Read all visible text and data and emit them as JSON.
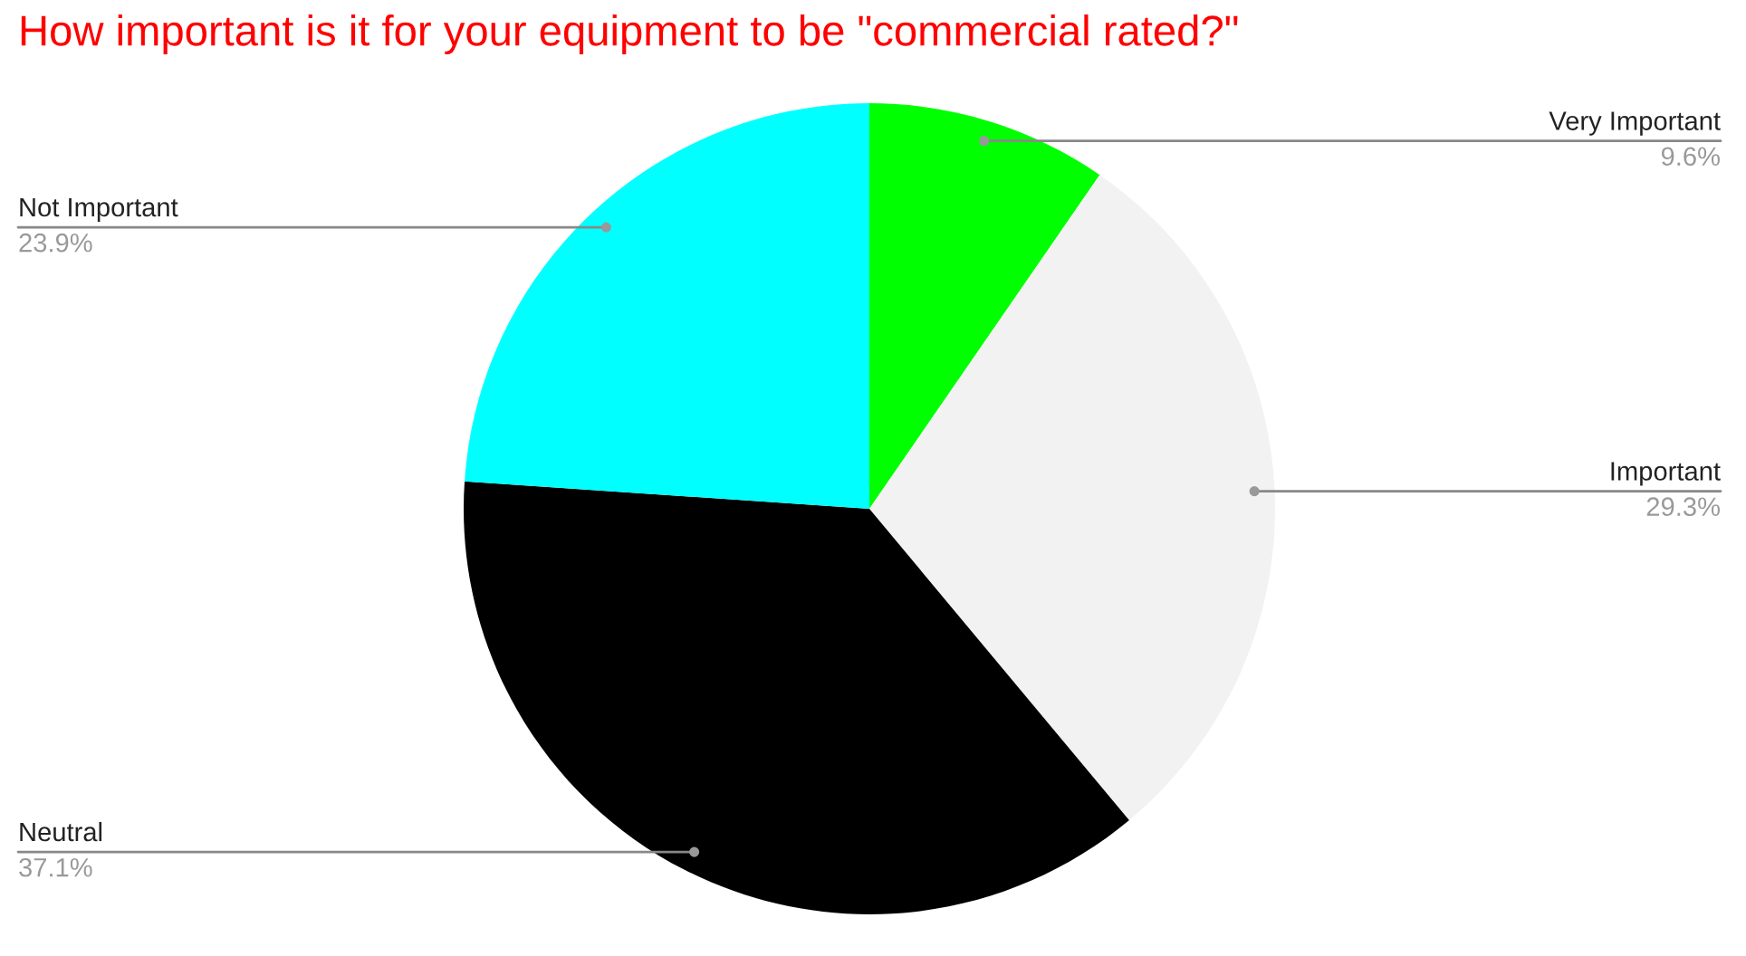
{
  "chart_data": {
    "type": "pie",
    "title": "How important is it for your equipment to be \"commercial rated?\"",
    "categories": [
      "Very Important",
      "Important",
      "Neutral",
      "Not Important"
    ],
    "values": [
      9.6,
      29.3,
      37.1,
      23.9
    ],
    "value_labels": [
      "9.6%",
      "29.3%",
      "37.1%",
      "23.9%"
    ],
    "colors": [
      "#00ff00",
      "#f2f2f2",
      "#000000",
      "#00ffff"
    ]
  }
}
